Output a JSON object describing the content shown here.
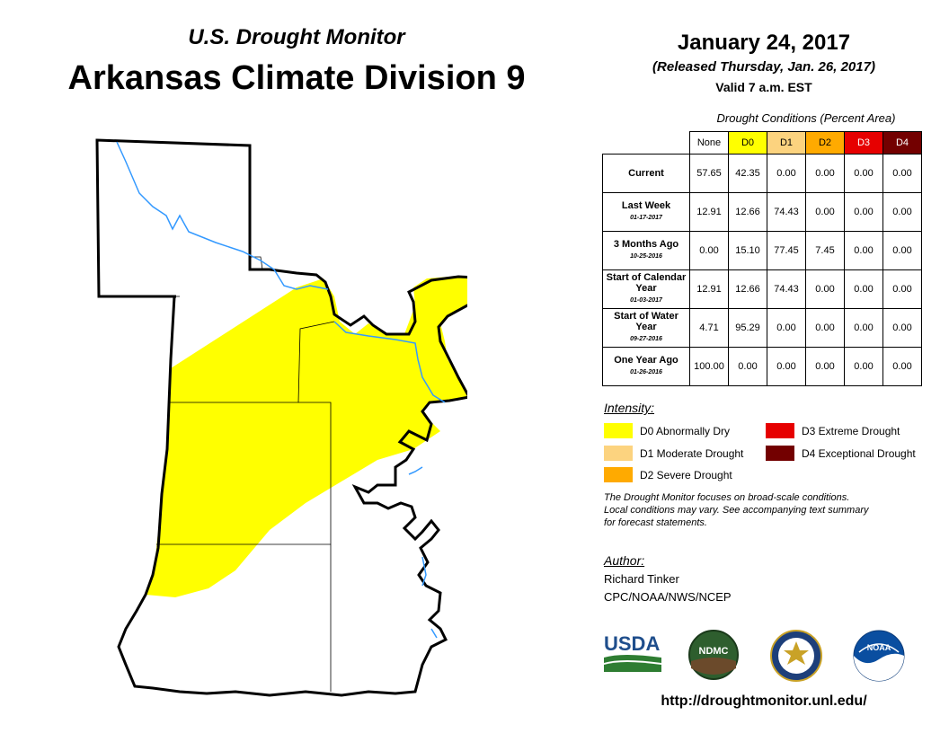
{
  "header": {
    "subtitle": "U.S. Drought Monitor",
    "title": "Arkansas Climate Division 9",
    "date": "January 24, 2017",
    "released": "(Released Thursday, Jan. 26, 2017)",
    "valid": "Valid 7 a.m. EST"
  },
  "table": {
    "caption": "Drought Conditions (Percent Area)",
    "columns": [
      {
        "label": "None",
        "color": "#ffffff"
      },
      {
        "label": "D0",
        "color": "#ffff00"
      },
      {
        "label": "D1",
        "color": "#fcd37f"
      },
      {
        "label": "D2",
        "color": "#ffaa00"
      },
      {
        "label": "D3",
        "color": "#e60000"
      },
      {
        "label": "D4",
        "color": "#730000"
      }
    ],
    "rows": [
      {
        "label": "Current",
        "date": "",
        "values": [
          "57.65",
          "42.35",
          "0.00",
          "0.00",
          "0.00",
          "0.00"
        ]
      },
      {
        "label": "Last Week",
        "date": "01-17-2017",
        "values": [
          "12.91",
          "12.66",
          "74.43",
          "0.00",
          "0.00",
          "0.00"
        ]
      },
      {
        "label": "3 Months Ago",
        "date": "10-25-2016",
        "values": [
          "0.00",
          "15.10",
          "77.45",
          "7.45",
          "0.00",
          "0.00"
        ]
      },
      {
        "label": "Start of Calendar Year",
        "date": "01-03-2017",
        "values": [
          "12.91",
          "12.66",
          "74.43",
          "0.00",
          "0.00",
          "0.00"
        ]
      },
      {
        "label": "Start of Water Year",
        "date": "09-27-2016",
        "values": [
          "4.71",
          "95.29",
          "0.00",
          "0.00",
          "0.00",
          "0.00"
        ]
      },
      {
        "label": "One Year Ago",
        "date": "01-26-2016",
        "values": [
          "100.00",
          "0.00",
          "0.00",
          "0.00",
          "0.00",
          "0.00"
        ]
      }
    ]
  },
  "legend": {
    "title": "Intensity:",
    "items": [
      {
        "label": "D0 Abnormally Dry",
        "color": "#ffff00"
      },
      {
        "label": "D1 Moderate Drought",
        "color": "#fcd37f"
      },
      {
        "label": "D2 Severe Drought",
        "color": "#ffaa00"
      },
      {
        "label": "D3 Extreme Drought",
        "color": "#e60000"
      },
      {
        "label": "D4 Exceptional Drought",
        "color": "#730000"
      }
    ]
  },
  "note": {
    "line1": "The Drought Monitor focuses on broad-scale conditions.",
    "line2": "Local conditions may vary. See accompanying text summary",
    "line3": "for forecast statements."
  },
  "author": {
    "title": "Author:",
    "name": "Richard Tinker",
    "org": "CPC/NOAA/NWS/NCEP"
  },
  "logos": {
    "usda": "USDA",
    "ndmc": "NDMC",
    "noaa": "NOAA"
  },
  "map": {
    "drought_fill": "#ffff00",
    "river_color": "#3399ff",
    "drought_category": "D0"
  },
  "url": "http://droughtmonitor.unl.edu/"
}
